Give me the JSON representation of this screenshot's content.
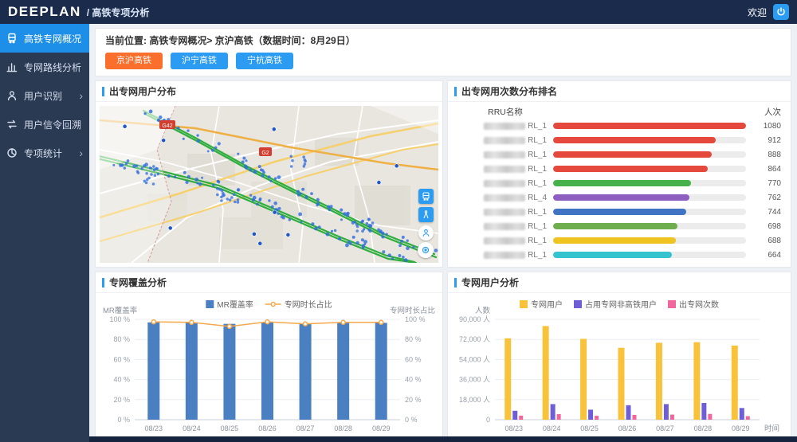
{
  "header": {
    "logo": "DEEPLAN",
    "subtitle": "/ 高铁专项分析",
    "welcome": "欢迎"
  },
  "sidebar": {
    "items": [
      {
        "label": "高铁专网概况",
        "icon": "train-icon",
        "active": true,
        "arrow": false
      },
      {
        "label": "专网路线分析",
        "icon": "bar-chart-icon",
        "active": false,
        "arrow": false
      },
      {
        "label": "用户识别",
        "icon": "user-icon",
        "active": false,
        "arrow": true
      },
      {
        "label": "用户信令回溯",
        "icon": "transfer-icon",
        "active": false,
        "arrow": false
      },
      {
        "label": "专项统计",
        "icon": "pie-chart-icon",
        "active": false,
        "arrow": true
      }
    ]
  },
  "breadcrumb": {
    "prefix": "当前位置:",
    "text": "高铁专网概况> 京沪高铁（数据时间：8月29日）"
  },
  "line_buttons": [
    {
      "label": "京沪高铁",
      "active": true
    },
    {
      "label": "沪宁高铁",
      "active": false
    },
    {
      "label": "宁杭高铁",
      "active": false
    }
  ],
  "map_panel": {
    "title": "出专网用户分布",
    "road_labels": [
      "G42",
      "G2"
    ]
  },
  "ranking_panel": {
    "title": "出专网用次数分布排名",
    "col_name": "RRU名称",
    "col_value": "人次"
  },
  "coverage_panel": {
    "title": "专网覆盖分析"
  },
  "users_panel": {
    "title": "专网用户分析"
  },
  "colors": {
    "accent_blue": "#2b9cf2",
    "active_orange": "#fb6f2c",
    "sidebar_active": "#1e8fe8"
  },
  "chart_data": [
    {
      "id": "ranking",
      "type": "bar",
      "orientation": "horizontal",
      "title": "出专网用次数分布排名",
      "xmax": 1080,
      "masked_names": true,
      "rows": [
        {
          "label_suffix": "RL_1",
          "value": 1080,
          "color": "#e5493d"
        },
        {
          "label_suffix": "RL_1",
          "value": 912,
          "color": "#e5493d"
        },
        {
          "label_suffix": "RL_1",
          "value": 888,
          "color": "#e5493d"
        },
        {
          "label_suffix": "RL_1",
          "value": 864,
          "color": "#e5493d"
        },
        {
          "label_suffix": "RL_1",
          "value": 770,
          "color": "#47b14b"
        },
        {
          "label_suffix": "RL_4",
          "value": 762,
          "color": "#8e5fc0"
        },
        {
          "label_suffix": "RL_1",
          "value": 744,
          "color": "#4073c4"
        },
        {
          "label_suffix": "RL_1",
          "value": 698,
          "color": "#6fae4e"
        },
        {
          "label_suffix": "RL_1",
          "value": 688,
          "color": "#efc320"
        },
        {
          "label_suffix": "RL_1",
          "value": 664,
          "color": "#35c4cf"
        }
      ]
    },
    {
      "id": "coverage",
      "type": "combo",
      "title": "专网覆盖分析",
      "categories": [
        "08/23",
        "08/24",
        "08/25",
        "08/26",
        "08/27",
        "08/28",
        "08/29"
      ],
      "bar_series": {
        "name": "MR覆盖率",
        "color": "#4a80c2",
        "values": [
          97,
          97,
          95.5,
          97,
          96,
          97,
          96.5
        ]
      },
      "line_series": {
        "name": "专网时长占比",
        "color": "#f5a84b",
        "values": [
          97.5,
          97,
          93,
          97.5,
          95.5,
          97,
          97
        ]
      },
      "ylabel_left": "MR覆盖率",
      "ylabel_right": "专网时长占比",
      "yticks": [
        "0 %",
        "20 %",
        "40 %",
        "60 %",
        "80 %",
        "100 %"
      ],
      "ylim": [
        0,
        100
      ]
    },
    {
      "id": "users",
      "type": "bar",
      "title": "专网用户分析",
      "categories": [
        "08/23",
        "08/24",
        "08/25",
        "08/26",
        "08/27",
        "08/28",
        "08/29"
      ],
      "series": [
        {
          "name": "专网用户",
          "color": "#f8c23a",
          "values": [
            73000,
            84000,
            72500,
            64500,
            69000,
            69500,
            66500
          ]
        },
        {
          "name": "占用专网非高铁用户",
          "color": "#6f5fd6",
          "values": [
            8000,
            14000,
            9000,
            13000,
            14000,
            15000,
            10500
          ]
        },
        {
          "name": "出专网次数",
          "color": "#f0679e",
          "values": [
            3700,
            5000,
            3500,
            4300,
            4600,
            5200,
            3200
          ]
        }
      ],
      "ylabel": "人数",
      "xlabel": "时间",
      "yticks": [
        "0",
        "18,000 人",
        "36,000 人",
        "54,000 人",
        "72,000 人",
        "90,000 人"
      ],
      "ylim": [
        0,
        90000
      ]
    }
  ]
}
